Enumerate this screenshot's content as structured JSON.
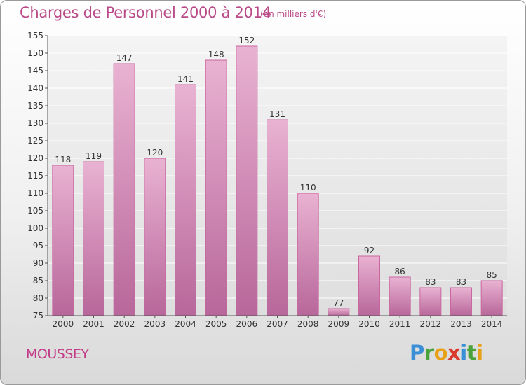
{
  "header": {
    "title": "Charges de Personnel 2000 à 2014",
    "subtitle": "(en milliers d'€)"
  },
  "footer": {
    "commune": "MOUSSEY",
    "logo_letters": [
      {
        "ch": "P",
        "color": "#3a8fd6"
      },
      {
        "ch": "r",
        "color": "#4aa33a"
      },
      {
        "ch": "o",
        "color": "#e8a219"
      },
      {
        "ch": "x",
        "color": "#d93a2b"
      },
      {
        "ch": "i",
        "color": "#3a8fd6"
      },
      {
        "ch": "t",
        "color": "#4aa33a"
      },
      {
        "ch": "i",
        "color": "#e8a219"
      }
    ]
  },
  "chart_data": {
    "type": "bar",
    "categories": [
      "2000",
      "2001",
      "2002",
      "2003",
      "2004",
      "2005",
      "2006",
      "2007",
      "2008",
      "2009",
      "2010",
      "2011",
      "2012",
      "2013",
      "2014"
    ],
    "values": [
      118,
      119,
      147,
      120,
      141,
      148,
      152,
      131,
      110,
      77,
      92,
      86,
      83,
      83,
      85
    ],
    "ylim": [
      75,
      155
    ],
    "yticks": [
      75,
      80,
      85,
      90,
      95,
      100,
      105,
      110,
      115,
      120,
      125,
      130,
      135,
      140,
      145,
      150,
      155
    ],
    "grid": true,
    "bar_color": "#d98cbb",
    "bar_color_light": "#eab3d3",
    "bar_color_dark": "#c06b9d"
  }
}
